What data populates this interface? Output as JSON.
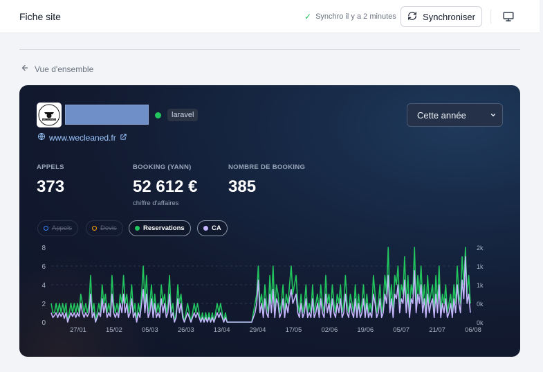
{
  "header": {
    "title": "Fiche site",
    "sync_status": "Synchro il y a 2 minutes",
    "sync_button": "Synchroniser"
  },
  "breadcrumb": {
    "back_label": "Vue d'ensemble"
  },
  "site": {
    "badge": "laravel",
    "url": "www.wecleaned.fr",
    "logo_text": "WECLEANED",
    "status_color": "#22c55e"
  },
  "period": {
    "selected": "Cette année"
  },
  "stats": [
    {
      "label": "APPELS",
      "value": "373",
      "sub": ""
    },
    {
      "label": "BOOKING (YANN)",
      "value": "52 612 €",
      "sub": "chiffre d'affaires"
    },
    {
      "label": "NOMBRE DE BOOKING",
      "value": "385",
      "sub": ""
    }
  ],
  "legend": [
    {
      "label": "Appels",
      "active": false,
      "color": "#3b82f6"
    },
    {
      "label": "Devis",
      "active": false,
      "color": "#f59e0b"
    },
    {
      "label": "Reservations",
      "active": true,
      "color": "#22c55e"
    },
    {
      "label": "CA",
      "active": true,
      "color": "#c4b5fd"
    }
  ],
  "chart_data": {
    "type": "line",
    "x_ticks": [
      "27/01",
      "15/02",
      "05/03",
      "26/03",
      "13/04",
      "29/04",
      "17/05",
      "02/06",
      "19/06",
      "05/07",
      "21/07",
      "06/08"
    ],
    "left_axis": {
      "ticks": [
        "0",
        "2",
        "4",
        "6",
        "8"
      ],
      "ylim": [
        0,
        8
      ]
    },
    "right_axis": {
      "ticks": [
        "0k",
        "0k",
        "1k",
        "1k",
        "2k"
      ]
    },
    "series": [
      {
        "name": "Reservations",
        "color": "#22c55e",
        "values": [
          2,
          1,
          1,
          2,
          1,
          2,
          1,
          2,
          1,
          2,
          0,
          1,
          2,
          1,
          2,
          1,
          2,
          1,
          3,
          2,
          1,
          2,
          1,
          2,
          5,
          1,
          2,
          0,
          1,
          2,
          1,
          4,
          2,
          3,
          1,
          2,
          1,
          5,
          2,
          1,
          2,
          1,
          3,
          2,
          5,
          2,
          3,
          1,
          2,
          4,
          1,
          2,
          0,
          2,
          1,
          3,
          6,
          2,
          5,
          1,
          2,
          4,
          1,
          3,
          1,
          2,
          1,
          4,
          2,
          3,
          1,
          2,
          5,
          1,
          2,
          0,
          1,
          4,
          2,
          3,
          1,
          0,
          1,
          2,
          1,
          0,
          1,
          2,
          1,
          2,
          1,
          0,
          1,
          0,
          1,
          0,
          1,
          0,
          1,
          0,
          1,
          2,
          1,
          2,
          1,
          0,
          1,
          0,
          0,
          0,
          0,
          0,
          0,
          0,
          0,
          0,
          0,
          0,
          0,
          0,
          0,
          0,
          0,
          1,
          2,
          3,
          6,
          2,
          3,
          1,
          4,
          2,
          1,
          5,
          2,
          6,
          1,
          4,
          3,
          1,
          2,
          4,
          1,
          3,
          2,
          4,
          6,
          3,
          4,
          5,
          2,
          1,
          3,
          1,
          2,
          4,
          1,
          2,
          1,
          4,
          1,
          2,
          3,
          1,
          4,
          2,
          1,
          5,
          2,
          3,
          1,
          4,
          2,
          1,
          3,
          2,
          4,
          1,
          2,
          5,
          2,
          1,
          3,
          2,
          1,
          4,
          1,
          3,
          1,
          2,
          4,
          1,
          3,
          1,
          2,
          1,
          5,
          3,
          1,
          2,
          4,
          1,
          2,
          5,
          3,
          8,
          2,
          4,
          1,
          5,
          4,
          6,
          2,
          4,
          3,
          7,
          2,
          5,
          1,
          4,
          3,
          8,
          2,
          5,
          3,
          6,
          2,
          4,
          1,
          5,
          2,
          3,
          4,
          1,
          5,
          2,
          6,
          1,
          3,
          2,
          4,
          1,
          2,
          3,
          1,
          4,
          2,
          6,
          3,
          2,
          7,
          4,
          8,
          3,
          5,
          2
        ]
      },
      {
        "name": "CA",
        "color": "#c4b5fd",
        "values": [
          1,
          0.5,
          0.7,
          1,
          0.5,
          1,
          0.6,
          1,
          0.4,
          1,
          0,
          0.5,
          1,
          0.6,
          1,
          0.5,
          1,
          0.6,
          2,
          1,
          0.5,
          1,
          0.6,
          1,
          3,
          0.5,
          1,
          0,
          0.5,
          1,
          0.6,
          2.5,
          1,
          2,
          0.5,
          1,
          0.6,
          3,
          1,
          0.5,
          1,
          0.5,
          2,
          1,
          3,
          1,
          2,
          0.5,
          1,
          2.5,
          0.5,
          1,
          0,
          1,
          0.5,
          2,
          3.5,
          1,
          3,
          0.5,
          1,
          2.5,
          0.5,
          2,
          0.5,
          1,
          0.5,
          2.5,
          1,
          2,
          0.5,
          1,
          3,
          0.5,
          1,
          0,
          0.5,
          2.5,
          1,
          2,
          0.5,
          0,
          0.5,
          1,
          0.5,
          0,
          0.5,
          1,
          0.5,
          1,
          0.5,
          0,
          0.5,
          0,
          0.5,
          0,
          0.5,
          0,
          0.5,
          0,
          0.5,
          1,
          0.5,
          1,
          0.5,
          0,
          0.5,
          0,
          0,
          0,
          0,
          0,
          0,
          0,
          0,
          0,
          0,
          0,
          0,
          0,
          0,
          0,
          0,
          0.5,
          1,
          2,
          4.5,
          1,
          2,
          0.5,
          2.5,
          1,
          0.5,
          3,
          1,
          3.5,
          0.5,
          2.5,
          2,
          0.5,
          1,
          2.5,
          0.5,
          2,
          1,
          2.5,
          3.5,
          2,
          2.5,
          3,
          1,
          0.5,
          2,
          0.5,
          1,
          2.5,
          0.5,
          1,
          0.5,
          2.5,
          0.5,
          1,
          2,
          0.5,
          2.5,
          1,
          0.5,
          3,
          1,
          2,
          0.5,
          2.5,
          1,
          0.5,
          2,
          1,
          2.5,
          0.5,
          1,
          3,
          1,
          0.5,
          2,
          1,
          0.5,
          2.5,
          0.5,
          2,
          0.5,
          1,
          2.5,
          0.5,
          2,
          0.5,
          1,
          0.5,
          3,
          2,
          0.5,
          1,
          2.5,
          0.5,
          1,
          3,
          2,
          5,
          1,
          2.5,
          0.5,
          3,
          2.5,
          4,
          1,
          2.5,
          2,
          4.5,
          1,
          3,
          0.5,
          2.5,
          2,
          5.5,
          1,
          3,
          2,
          4,
          1,
          2.5,
          0.5,
          3,
          1,
          2,
          2.5,
          0.5,
          3,
          1,
          4,
          0.5,
          2,
          1,
          2.5,
          0.5,
          1,
          2,
          0.5,
          2.5,
          1,
          4,
          2,
          1,
          4.5,
          2.5,
          7,
          2,
          3,
          1
        ]
      }
    ]
  }
}
